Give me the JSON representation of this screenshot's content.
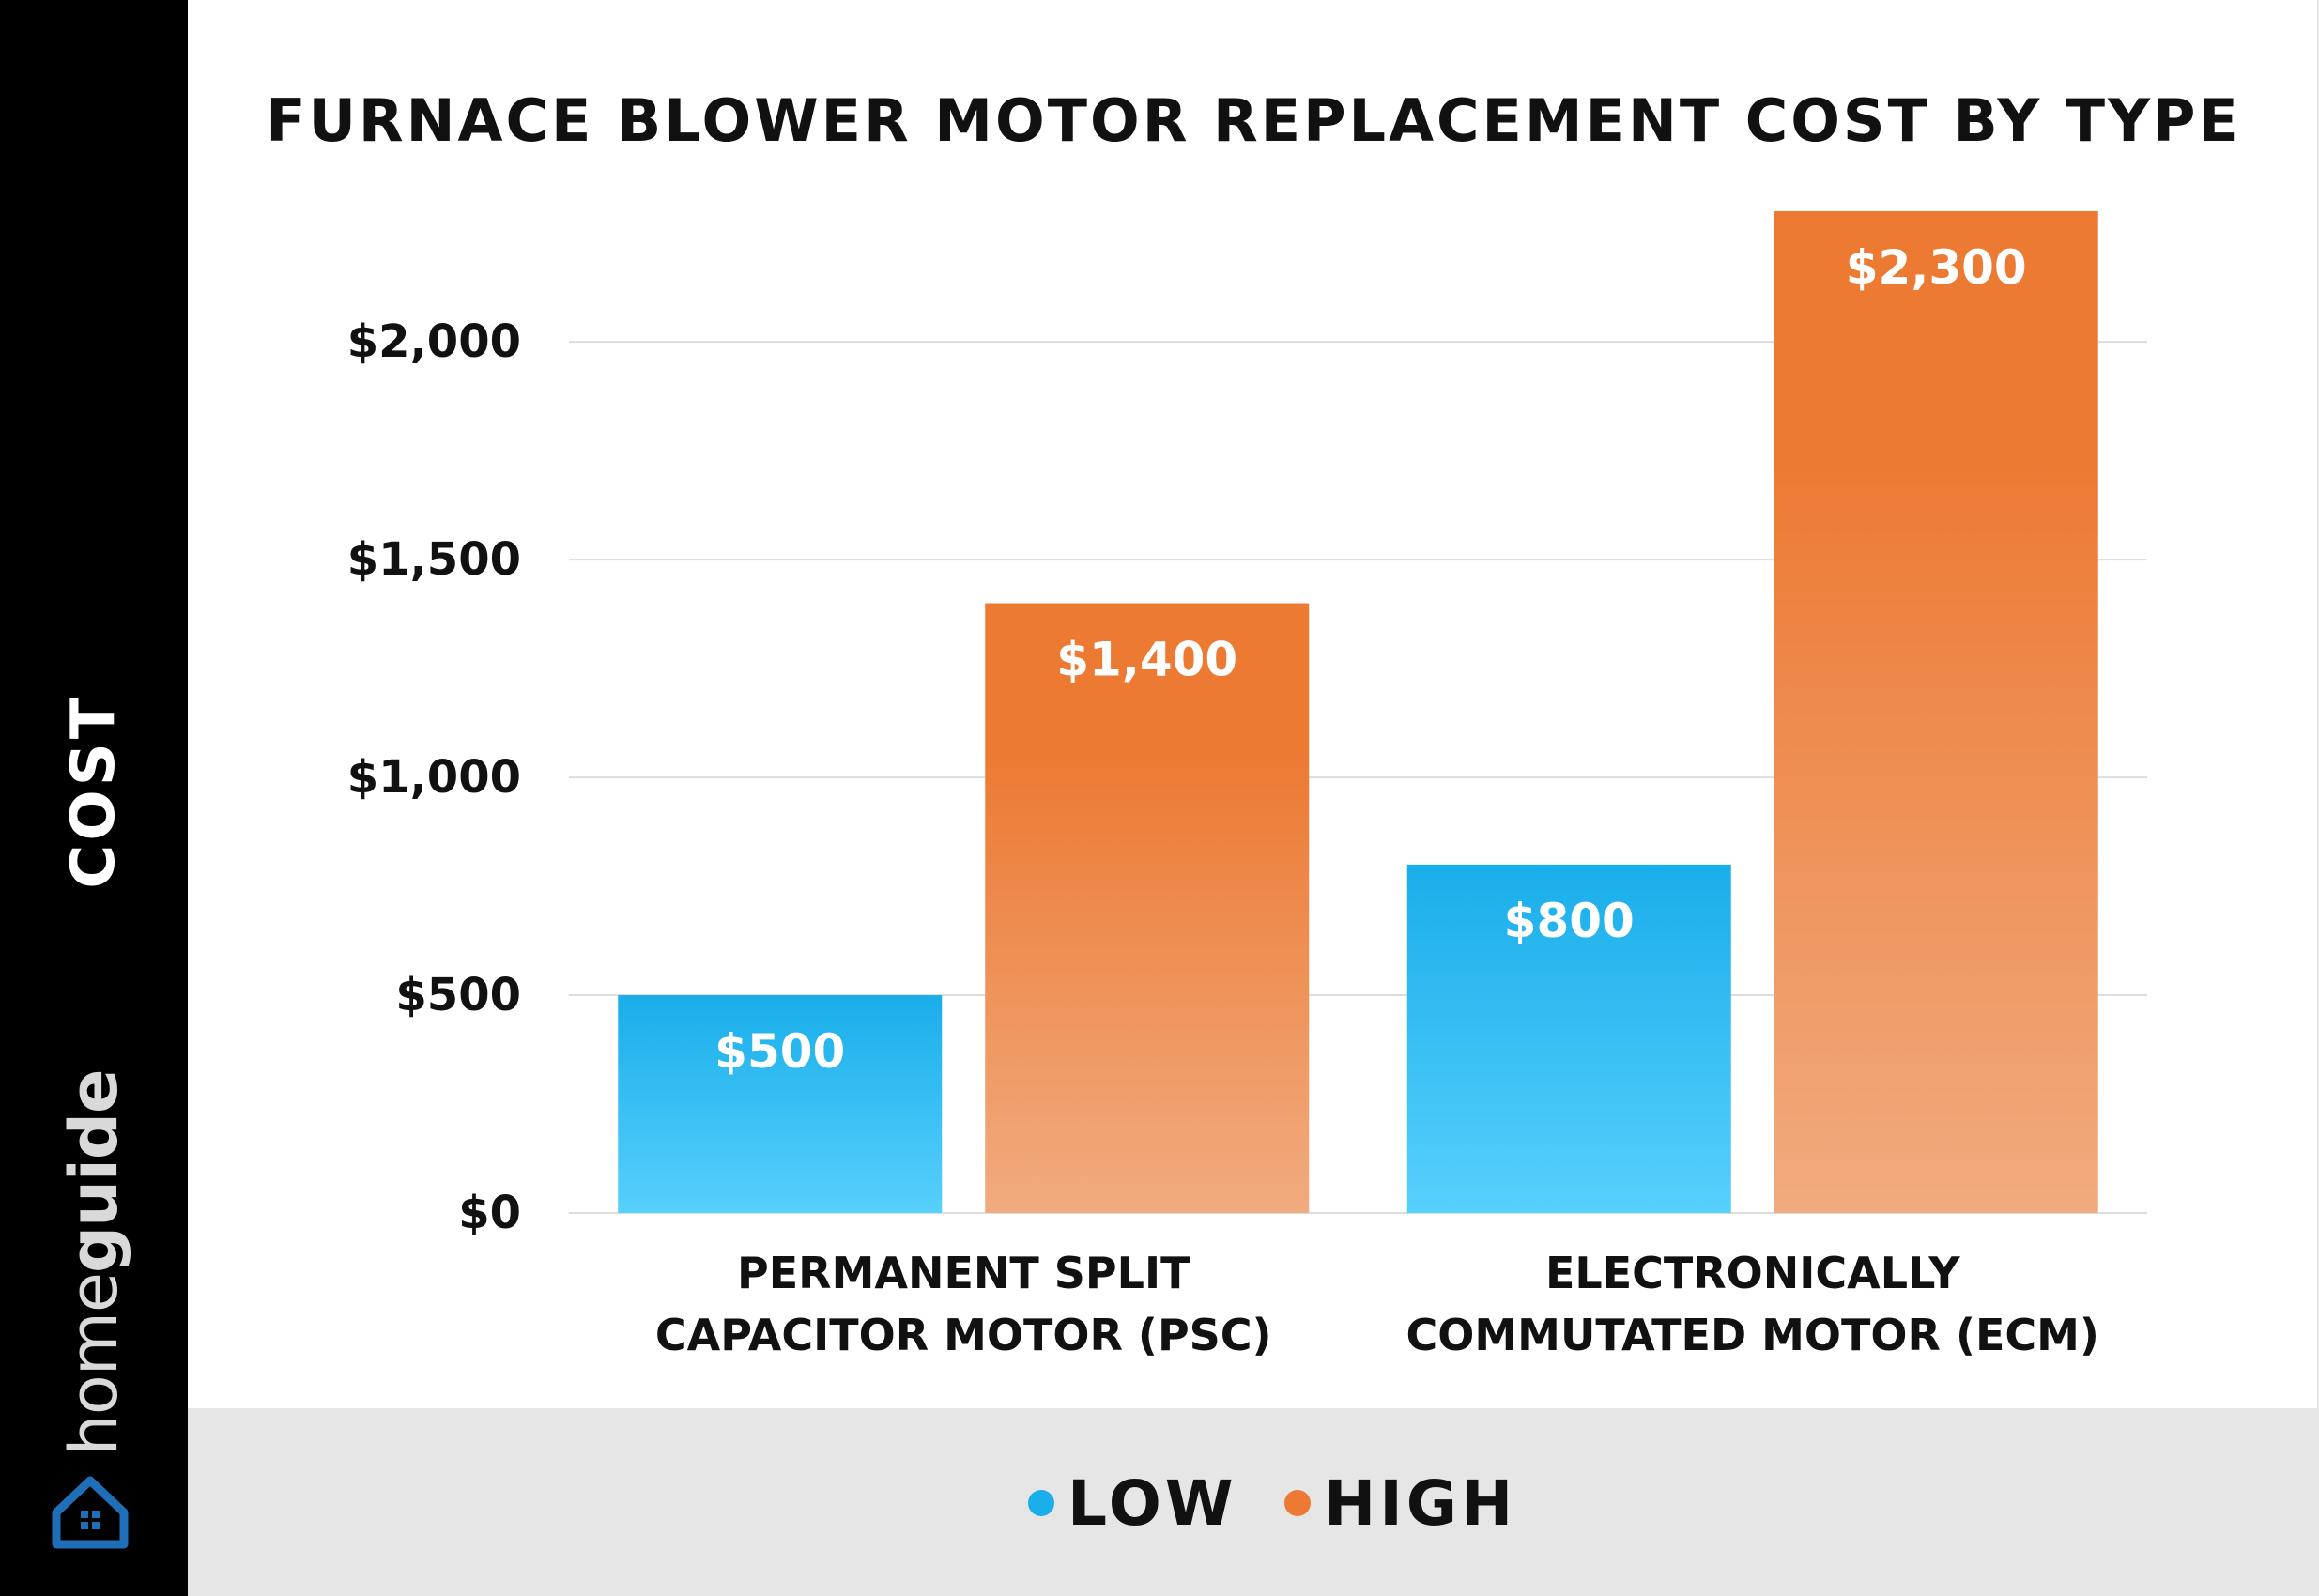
{
  "brand": {
    "name_light": "home",
    "name_bold": "guide",
    "logo_icon": "house-icon"
  },
  "colors": {
    "low": "#1aaeea",
    "low_light": "#57d0fc",
    "high": "#ec7a33",
    "high_light": "#f1ab7f",
    "grid": "#dddddd",
    "text": "#111111"
  },
  "chart_data": {
    "type": "bar",
    "title": "FURNACE BLOWER MOTOR REPLACEMENT COST BY TYPE",
    "ylabel": "COST",
    "xlabel": "",
    "categories": [
      [
        "PERMANENT SPLIT",
        "CAPACITOR MOTOR (PSC)"
      ],
      [
        "ELECTRONICALLY",
        "COMMUTATED MOTOR (ECM)"
      ]
    ],
    "series": [
      {
        "name": "LOW",
        "values": [
          500,
          800
        ],
        "labels": [
          "$500",
          "$800"
        ]
      },
      {
        "name": "HIGH",
        "values": [
          1400,
          2300
        ],
        "labels": [
          "$1,400",
          "$2,300"
        ]
      }
    ],
    "ylim": [
      0,
      2300
    ],
    "yticks": [
      0,
      500,
      1000,
      1500,
      2000
    ],
    "ytick_labels": [
      "$0",
      "$500",
      "$1,000",
      "$1,500",
      "$2,000"
    ],
    "grid": true,
    "legend": "bottom"
  }
}
